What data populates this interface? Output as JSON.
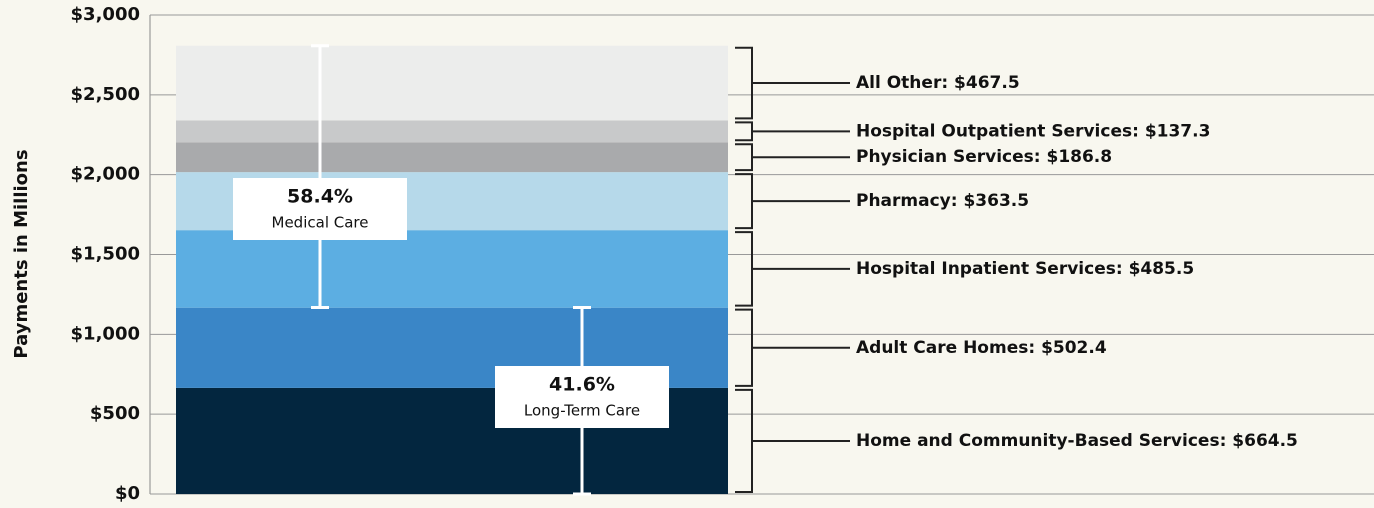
{
  "chart_data": {
    "type": "stacked-bar",
    "y_label": "Payments in Millions",
    "ylim": [
      0,
      3000
    ],
    "yticks": [
      {
        "value": 0,
        "label": "$0"
      },
      {
        "value": 500,
        "label": "$500"
      },
      {
        "value": 1000,
        "label": "$1,000"
      },
      {
        "value": 1500,
        "label": "$1,500"
      },
      {
        "value": 2000,
        "label": "$2,000"
      },
      {
        "value": 2500,
        "label": "$2,500"
      },
      {
        "value": 3000,
        "label": "$3,000"
      }
    ],
    "grid": true,
    "series": [
      {
        "color": "#03263f",
        "values": [
          664.5
        ],
        "value_labels": [
          "Home and Community-Based Services: $664.5"
        ]
      },
      {
        "color": "#3a86c7",
        "values": [
          502.4
        ],
        "value_labels": [
          "Adult Care Homes: $502.4"
        ]
      },
      {
        "color": "#5caee2",
        "values": [
          485.5
        ],
        "value_labels": [
          "Hospital Inpatient Services: $485.5"
        ]
      },
      {
        "color": "#b6d9ea",
        "values": [
          363.5
        ],
        "value_labels": [
          "Pharmacy: $363.5"
        ]
      },
      {
        "color": "#a9aaac",
        "values": [
          186.8
        ],
        "value_labels": [
          "Physician Services: $186.8"
        ]
      },
      {
        "color": "#c8c9ca",
        "values": [
          137.3
        ],
        "value_labels": [
          "Hospital Outpatient Services: $137.3"
        ]
      },
      {
        "color": "#ecedec",
        "values": [
          467.5
        ],
        "value_labels": [
          "All Other: $467.5"
        ]
      }
    ],
    "groups": [
      {
        "name": "Long-Term Care",
        "value": 41.6,
        "value_label": "41.6%"
      },
      {
        "name": "Medical Care",
        "value": 58.4,
        "value_label": "58.4%"
      }
    ]
  }
}
